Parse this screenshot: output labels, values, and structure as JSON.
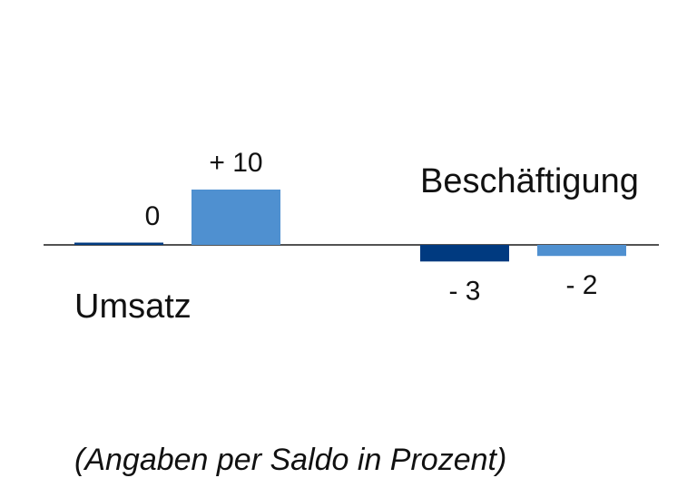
{
  "chart_data": {
    "type": "bar",
    "categories": [
      "Umsatz",
      "Beschäftigung"
    ],
    "series": [
      {
        "values": [
          0,
          -3
        ],
        "color": "#003a80"
      },
      {
        "values": [
          10,
          -2
        ],
        "color": "#4f90d0"
      }
    ],
    "data_labels": [
      [
        "0",
        "- 3"
      ],
      [
        "+ 10",
        "- 2"
      ]
    ],
    "ylim": [
      -5,
      15
    ],
    "grid": false,
    "legend": "none",
    "baseline_color": "#1a1a1a"
  },
  "footnote": "(Angaben per Saldo in Prozent)"
}
